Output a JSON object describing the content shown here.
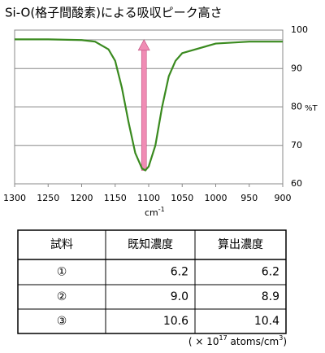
{
  "chart_data": {
    "type": "line",
    "title": "Si-O(格子間酸素)による吸収ピーク高さ",
    "x": [
      1300,
      1250,
      1200,
      1180,
      1160,
      1150,
      1140,
      1130,
      1120,
      1110,
      1105,
      1100,
      1090,
      1080,
      1070,
      1060,
      1050,
      1000,
      950,
      900
    ],
    "series": [
      {
        "color": "#3a8a1f",
        "values": [
          97.6,
          97.6,
          97.4,
          97.0,
          95.0,
          92.0,
          85.0,
          76.0,
          68.0,
          64.0,
          63.5,
          64.5,
          70.0,
          80.0,
          88.0,
          92.0,
          94.0,
          96.5,
          97.0,
          97.0
        ]
      }
    ],
    "xlim": [
      1300,
      900
    ],
    "xticks": [
      1300,
      1250,
      1200,
      1150,
      1100,
      1050,
      1000,
      950,
      900
    ],
    "ylim": [
      60,
      100
    ],
    "yticks": [
      60,
      70,
      80,
      90,
      100
    ],
    "grid": true,
    "xlabel": "cm",
    "xlabel_exp": "-1",
    "ylabel": "%T",
    "arrow": {
      "x": 1107,
      "from": 63.5,
      "to": 97.5,
      "color": "#f08cb4"
    }
  },
  "table": {
    "header": [
      "試料",
      "既知濃度",
      "算出濃度"
    ],
    "rows": [
      [
        "①",
        "6.2",
        "6.2"
      ],
      [
        "②",
        "9.0",
        "8.9"
      ],
      [
        "③",
        "10.6",
        "10.4"
      ]
    ]
  },
  "footnote": {
    "prefix": "( × 10",
    "exp": "17",
    "mid": " atoms/cm",
    "exp2": "3",
    "suffix": ")"
  }
}
